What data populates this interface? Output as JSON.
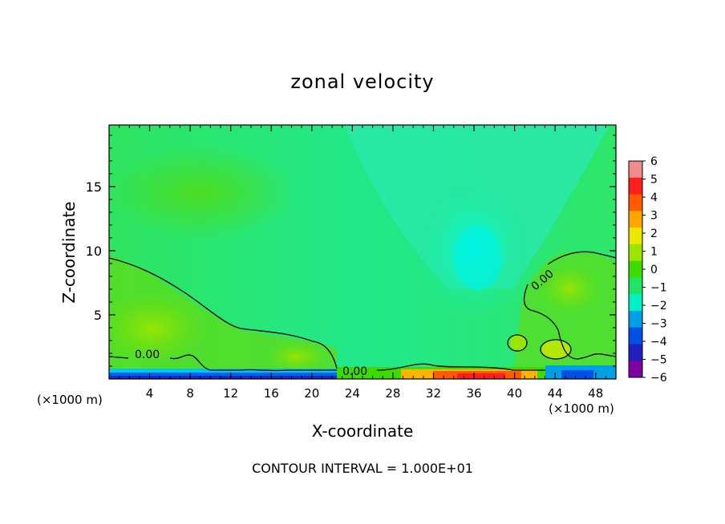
{
  "chart_data": {
    "type": "heatmap",
    "title": "zonal velocity",
    "xlabel": "X-coordinate",
    "ylabel": "Z-coordinate",
    "x_unit": "(×1000 m)",
    "x_unit_right": "(×1000 m)",
    "xlim": [
      0,
      50
    ],
    "ylim": [
      0,
      19.8
    ],
    "x_ticks": [
      "4",
      "8",
      "12",
      "16",
      "20",
      "24",
      "28",
      "32",
      "36",
      "40",
      "44",
      "48"
    ],
    "y_ticks": [
      "5",
      "10",
      "15"
    ],
    "colorbar": {
      "labels": [
        "6",
        "5",
        "4",
        "3",
        "2",
        "1",
        "0",
        "−1",
        "−2",
        "−3",
        "−4",
        "−5",
        "−6"
      ],
      "colors": [
        "#f28b8b",
        "#ff1e1e",
        "#ff5a00",
        "#ffa500",
        "#e8e800",
        "#9ae600",
        "#3cdc00",
        "#1ee664",
        "#00f0c8",
        "#00a0e6",
        "#0050e6",
        "#2020c0",
        "#8000a0"
      ]
    },
    "contour_label": "0.00",
    "contour_interval_text": "CONTOUR INTERVAL = 1.000E+01"
  }
}
